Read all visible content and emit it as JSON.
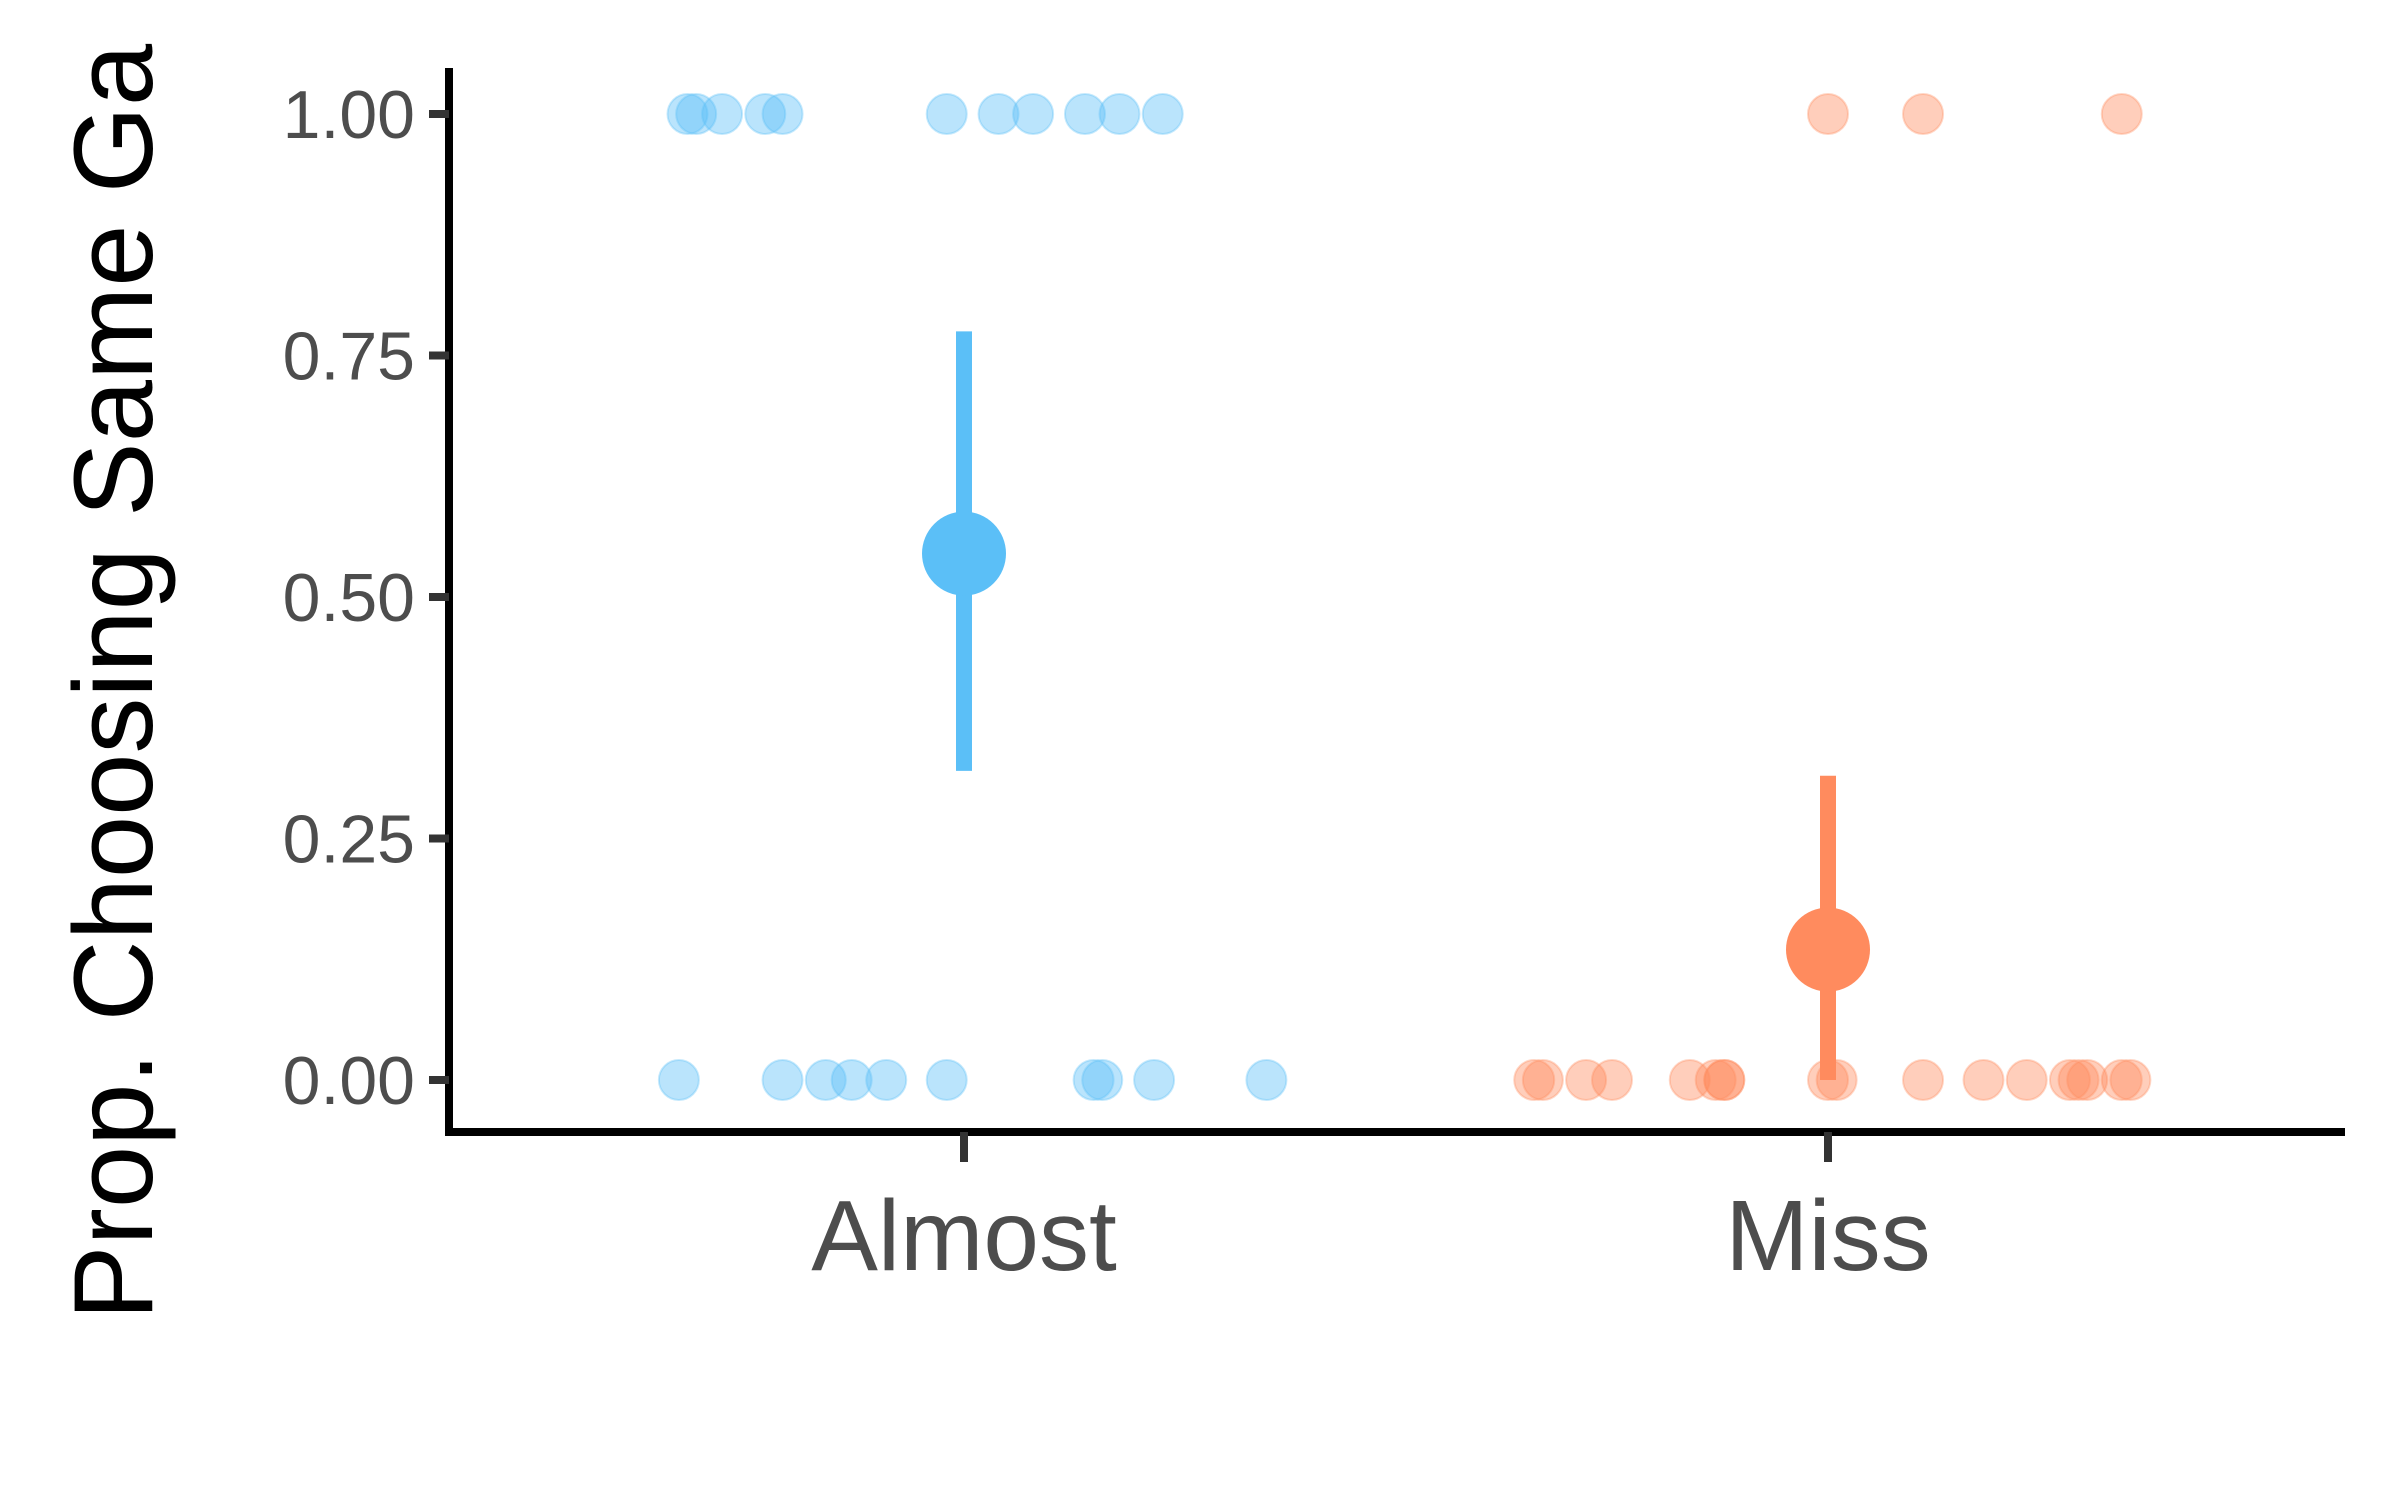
{
  "chart_data": {
    "type": "scatter",
    "title": "",
    "xlabel": "",
    "ylabel": "Prop. Choosing Same Ga",
    "ylim": [
      -0.05,
      1.12
    ],
    "y_ticks": [
      0.0,
      0.25,
      0.5,
      0.75,
      1.0
    ],
    "y_tick_labels": [
      "0.00",
      "0.25",
      "0.50",
      "0.75",
      "1.00"
    ],
    "categories": [
      "Almost",
      "Miss"
    ],
    "grid": false,
    "legend": "none",
    "series": [
      {
        "category": "Almost",
        "color": "#5BBFF7",
        "mean": 0.545,
        "ci": [
          0.32,
          0.775
        ],
        "points": [
          {
            "jitter": -0.32,
            "y": 1
          },
          {
            "jitter": -0.31,
            "y": 1
          },
          {
            "jitter": -0.28,
            "y": 1
          },
          {
            "jitter": -0.23,
            "y": 1
          },
          {
            "jitter": -0.21,
            "y": 1
          },
          {
            "jitter": -0.02,
            "y": 1
          },
          {
            "jitter": 0.04,
            "y": 1
          },
          {
            "jitter": 0.08,
            "y": 1
          },
          {
            "jitter": 0.14,
            "y": 1
          },
          {
            "jitter": 0.18,
            "y": 1
          },
          {
            "jitter": 0.23,
            "y": 1
          },
          {
            "jitter": -0.33,
            "y": 0
          },
          {
            "jitter": -0.21,
            "y": 0
          },
          {
            "jitter": -0.16,
            "y": 0
          },
          {
            "jitter": -0.13,
            "y": 0
          },
          {
            "jitter": -0.09,
            "y": 0
          },
          {
            "jitter": -0.02,
            "y": 0
          },
          {
            "jitter": 0.15,
            "y": 0
          },
          {
            "jitter": 0.16,
            "y": 0
          },
          {
            "jitter": 0.22,
            "y": 0
          },
          {
            "jitter": 0.35,
            "y": 0
          }
        ]
      },
      {
        "category": "Miss",
        "color": "#FF8B5E",
        "mean": 0.135,
        "ci": [
          0.0,
          0.315
        ],
        "points": [
          {
            "jitter": 0.0,
            "y": 1
          },
          {
            "jitter": 0.11,
            "y": 1
          },
          {
            "jitter": 0.34,
            "y": 1
          },
          {
            "jitter": -0.34,
            "y": 0
          },
          {
            "jitter": -0.33,
            "y": 0
          },
          {
            "jitter": -0.28,
            "y": 0
          },
          {
            "jitter": -0.25,
            "y": 0
          },
          {
            "jitter": -0.16,
            "y": 0
          },
          {
            "jitter": -0.13,
            "y": 0
          },
          {
            "jitter": -0.12,
            "y": 0
          },
          {
            "jitter": -0.12,
            "y": 0
          },
          {
            "jitter": 0.0,
            "y": 0
          },
          {
            "jitter": 0.01,
            "y": 0
          },
          {
            "jitter": 0.11,
            "y": 0
          },
          {
            "jitter": 0.18,
            "y": 0
          },
          {
            "jitter": 0.23,
            "y": 0
          },
          {
            "jitter": 0.28,
            "y": 0
          },
          {
            "jitter": 0.29,
            "y": 0
          },
          {
            "jitter": 0.3,
            "y": 0
          },
          {
            "jitter": 0.34,
            "y": 0
          },
          {
            "jitter": 0.35,
            "y": 0
          }
        ]
      }
    ]
  }
}
